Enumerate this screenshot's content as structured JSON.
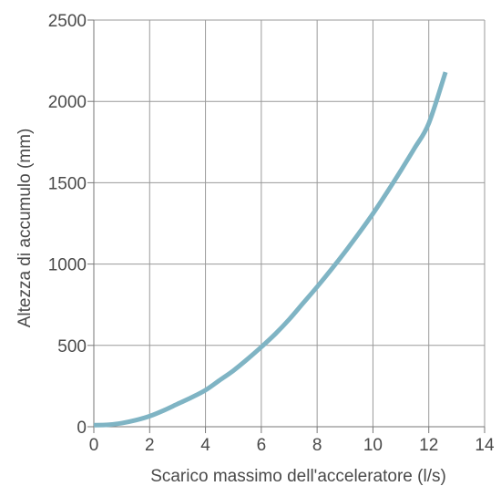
{
  "chart_data": {
    "type": "line",
    "title": "",
    "xlabel": "Scarico massimo dell'acceleratore (l/s)",
    "ylabel": "Altezza di accumulo (mm)",
    "xlim": [
      0,
      14
    ],
    "ylim": [
      0,
      2500
    ],
    "x_ticks": [
      "0",
      "2",
      "4",
      "6",
      "8",
      "10",
      "12",
      "14"
    ],
    "y_ticks": [
      "0",
      "500",
      "1000",
      "1500",
      "2000",
      "2500"
    ],
    "grid": true,
    "legend": "none",
    "series": [
      {
        "color": "#7fb4c4",
        "x": [
          0,
          0.5,
          1,
          1.5,
          2,
          2.5,
          3,
          3.5,
          4,
          4.5,
          5,
          5.5,
          6,
          6.5,
          7,
          7.5,
          8,
          8.5,
          9,
          9.5,
          10,
          10.5,
          11,
          11.5,
          12,
          12.6
        ],
        "y": [
          10,
          12,
          22,
          40,
          65,
          100,
          140,
          180,
          225,
          285,
          345,
          415,
          490,
          570,
          660,
          760,
          860,
          965,
          1075,
          1190,
          1310,
          1440,
          1575,
          1715,
          1865,
          2180
        ]
      }
    ]
  }
}
